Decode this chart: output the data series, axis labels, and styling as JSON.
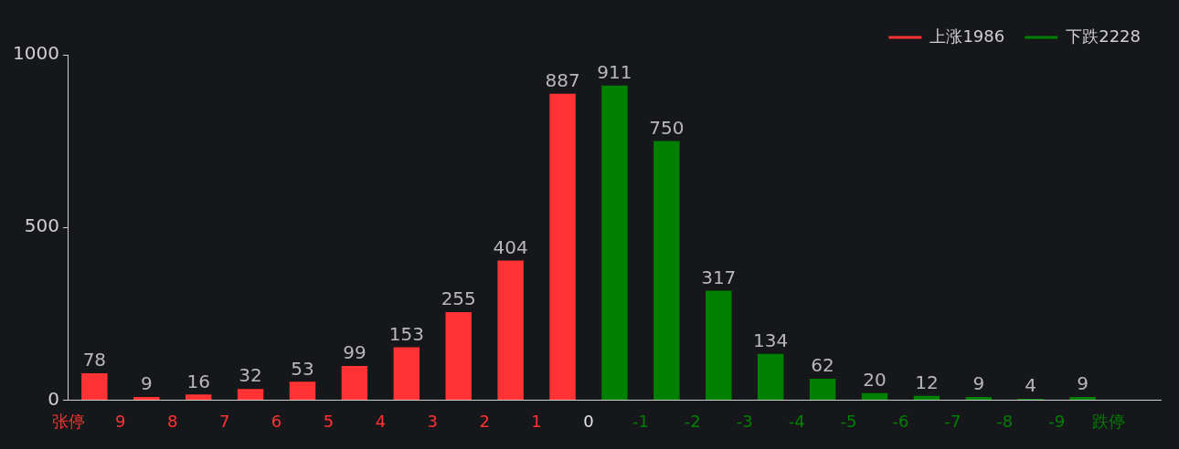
{
  "chart_data": {
    "type": "histogram",
    "bins": [
      10,
      9,
      8,
      7,
      6,
      5,
      4,
      3,
      2,
      1,
      0,
      -1,
      -2,
      -3,
      -4,
      -5,
      -6,
      -7,
      -8,
      -9,
      -10
    ],
    "series": [
      {
        "name": "上涨1986",
        "color": "#ff3333",
        "values": [
          78,
          9,
          16,
          32,
          53,
          99,
          153,
          255,
          404,
          887,
          null,
          null,
          null,
          null,
          null,
          null,
          null,
          null,
          null,
          null
        ]
      },
      {
        "name": "下跌2228",
        "color": "#008000",
        "values": [
          null,
          null,
          null,
          null,
          null,
          null,
          null,
          null,
          null,
          null,
          911,
          750,
          317,
          134,
          62,
          20,
          12,
          9,
          4,
          9
        ]
      }
    ],
    "xlim": [
      10,
      -11
    ],
    "xticks": [
      {
        "value": 10,
        "label": "张停"
      },
      9,
      8,
      7,
      6,
      5,
      4,
      3,
      2,
      1,
      0,
      -1,
      -2,
      -3,
      -4,
      -5,
      -6,
      -7,
      -8,
      -9,
      {
        "value": -10,
        "label": "跌停"
      }
    ],
    "ylim": [
      0,
      1000
    ],
    "yticks": [
      0,
      500,
      1000
    ],
    "data_labels": true,
    "grid": false,
    "legend": "top right"
  }
}
